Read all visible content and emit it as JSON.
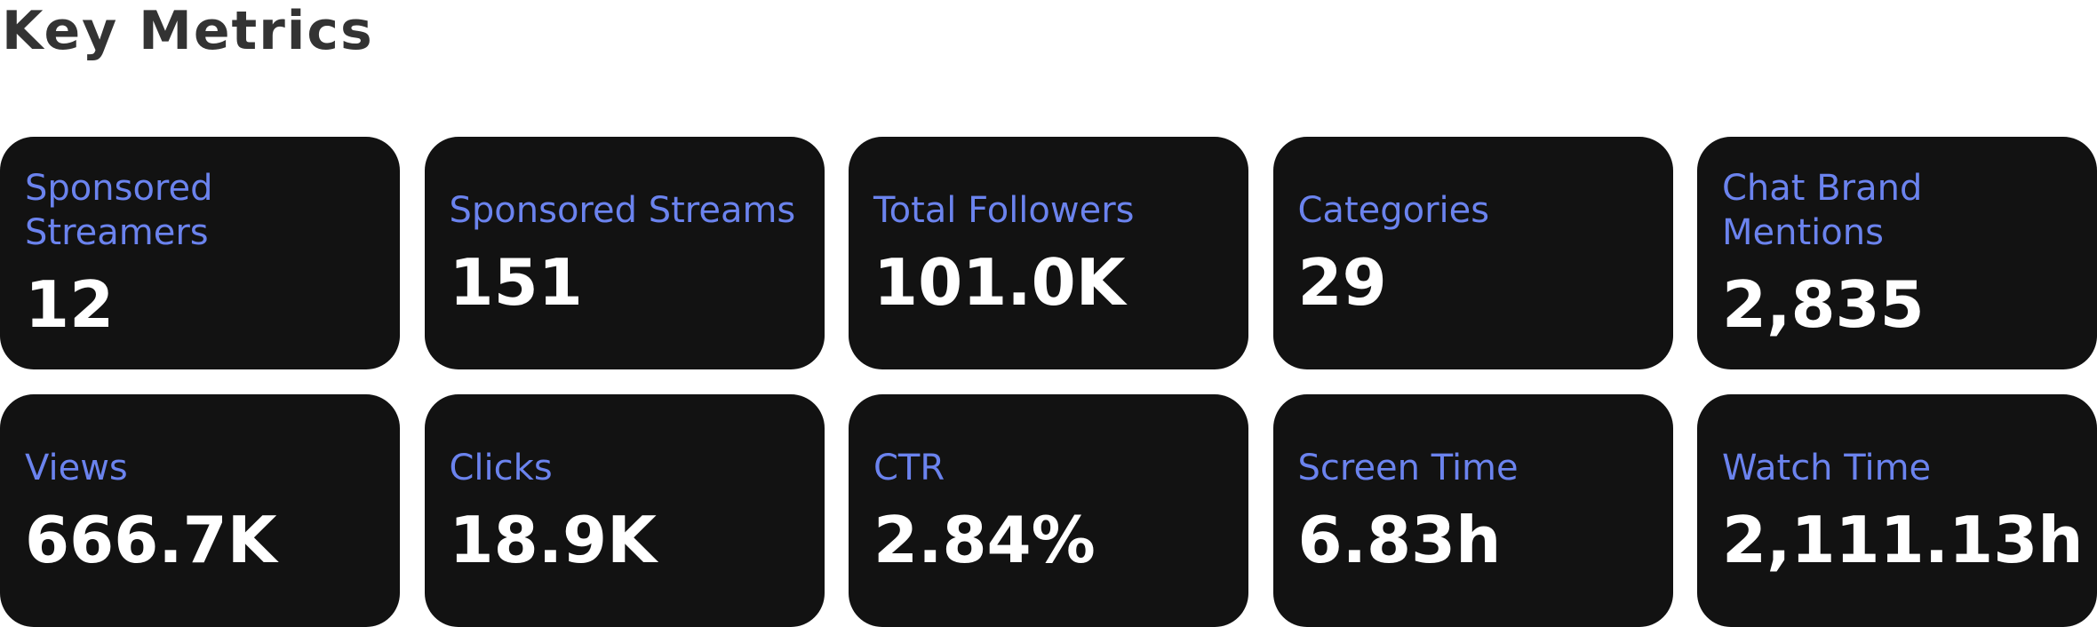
{
  "header": {
    "title": "Key Metrics"
  },
  "metrics": [
    {
      "label": "Sponsored Streamers",
      "value": "12"
    },
    {
      "label": "Sponsored Streams",
      "value": "151"
    },
    {
      "label": "Total Followers",
      "value": "101.0K"
    },
    {
      "label": "Categories",
      "value": "29"
    },
    {
      "label": "Chat Brand Mentions",
      "value": "2,835"
    },
    {
      "label": "Views",
      "value": "666.7K"
    },
    {
      "label": "Clicks",
      "value": "18.9K"
    },
    {
      "label": "CTR",
      "value": "2.84%"
    },
    {
      "label": "Screen Time",
      "value": "6.83h"
    },
    {
      "label": "Watch Time",
      "value": "2,111.13h"
    }
  ],
  "colors": {
    "card_background": "#121212",
    "label_accent": "#6b83ee",
    "value_text": "#ffffff",
    "title_text": "#333333"
  }
}
